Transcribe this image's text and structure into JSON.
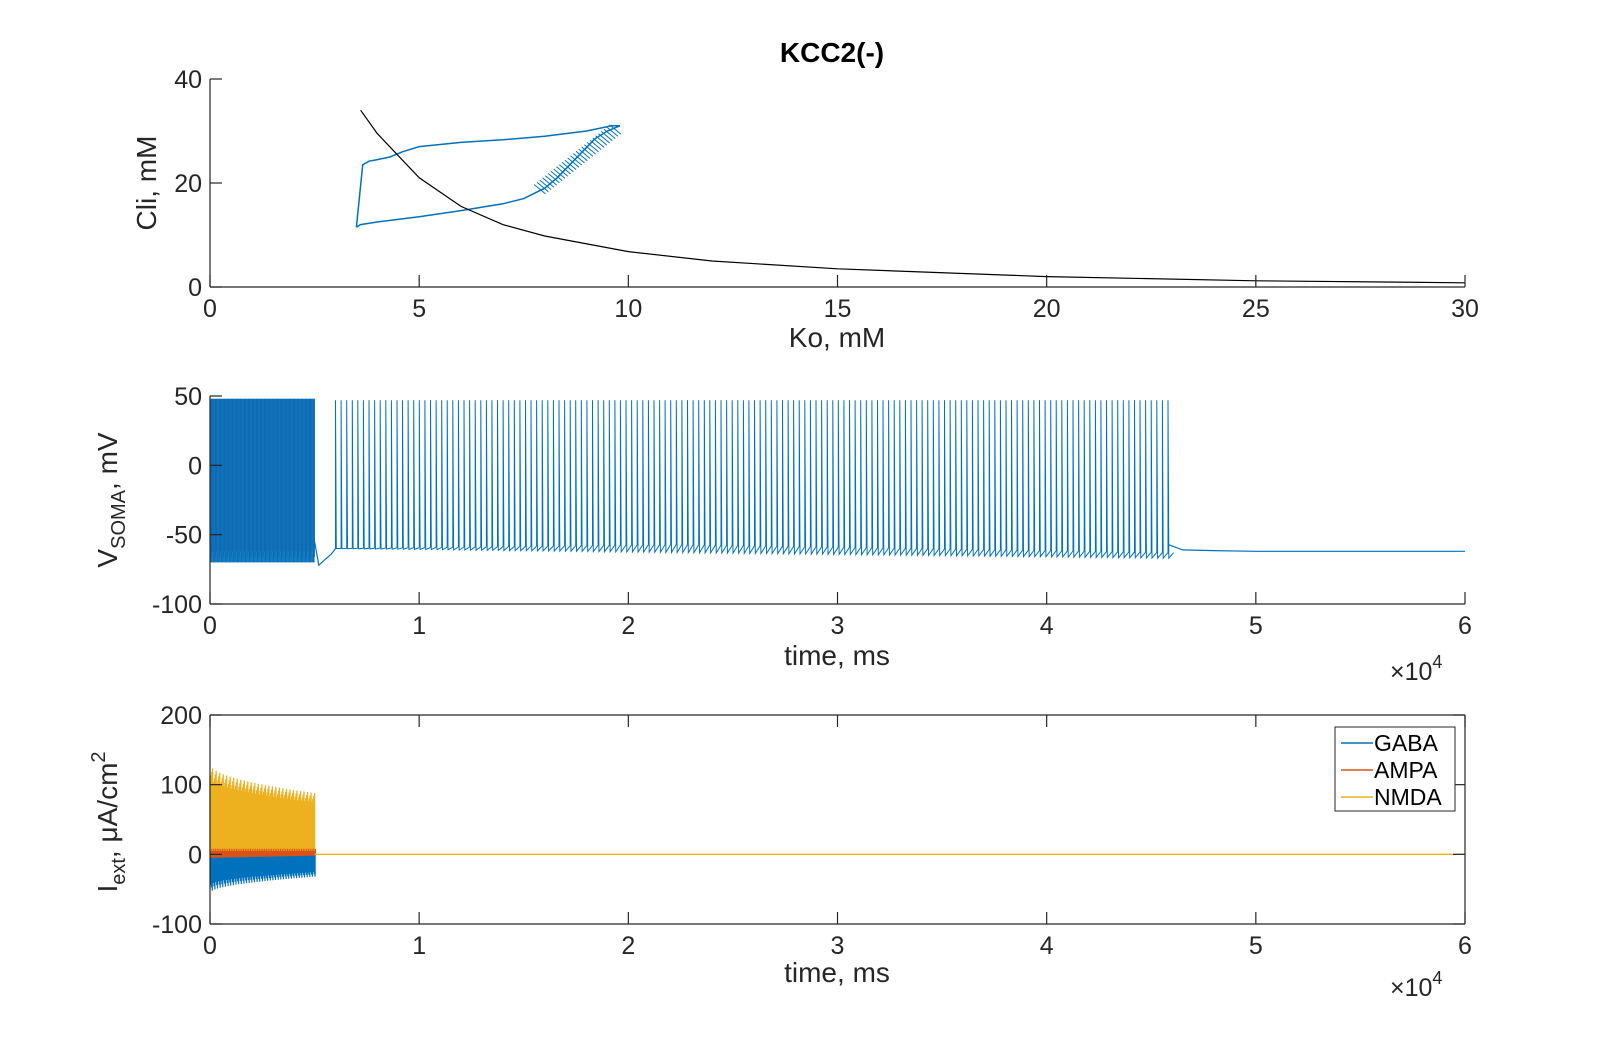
{
  "figure": {
    "title": "KCC2(-)",
    "exponent_base": "×10",
    "exponent_power": "4"
  },
  "colors": {
    "blue": "#0072BD",
    "red": "#D95319",
    "yellow": "#EDB120",
    "black": "#000000",
    "axis": "#262626"
  },
  "chart_data": [
    {
      "type": "line",
      "title": "KCC2(-)",
      "xlabel": "Ko, mM",
      "ylabel": "Cli, mM",
      "xlim": [
        0,
        30
      ],
      "ylim": [
        0,
        40
      ],
      "xticks": [
        0,
        5,
        10,
        15,
        20,
        25,
        30
      ],
      "yticks": [
        0,
        20,
        40
      ],
      "series": [
        {
          "color": "blue",
          "description": "hysteresis loop",
          "x": [
            3.5,
            3.6,
            4.0,
            5.0,
            6.0,
            7.0,
            7.5,
            8.0,
            8.3,
            8.6,
            8.9,
            9.2,
            9.5,
            9.8,
            9.6,
            9.0,
            8.0,
            7.0,
            6.0,
            5.0,
            4.6,
            4.3,
            4.0,
            3.8,
            3.65,
            3.5
          ],
          "y": [
            11.5,
            12.0,
            12.5,
            13.5,
            14.7,
            16.0,
            17.0,
            19.0,
            21.0,
            23.5,
            26.0,
            28.5,
            30.0,
            31.0,
            31.0,
            30.0,
            29.0,
            28.3,
            27.8,
            27.0,
            26.0,
            25.0,
            24.5,
            24.2,
            23.5,
            11.5
          ]
        },
        {
          "color": "black",
          "description": "reference curve",
          "x": [
            3.6,
            4.0,
            5.0,
            6.0,
            7.0,
            8.0,
            10.0,
            12.0,
            15.0,
            20.0,
            25.0,
            30.0
          ],
          "y": [
            34.0,
            29.5,
            21.0,
            15.5,
            12.0,
            9.8,
            6.8,
            5.0,
            3.5,
            2.0,
            1.2,
            0.8
          ]
        }
      ]
    },
    {
      "type": "line",
      "xlabel": "time, ms",
      "ylabel_main": "V",
      "ylabel_sub": "SOMA",
      "ylabel_rest": ", mV",
      "xlim": [
        0,
        6
      ],
      "ylim": [
        -100,
        50
      ],
      "xticks": [
        0,
        1,
        2,
        3,
        4,
        5,
        6
      ],
      "yticks": [
        -100,
        -50,
        0,
        50
      ],
      "x_multiplier": "×10^4",
      "series": [
        {
          "color": "blue",
          "description": "somatic membrane potential",
          "segments": [
            {
              "kind": "burst_dense",
              "t_start": 0.0,
              "t_end": 0.5,
              "v_low": -70,
              "v_high": 48,
              "v_mid_low": -55,
              "v_mid_high": 36
            },
            {
              "kind": "recovery",
              "t": [
                0.5,
                0.52,
                0.55,
                0.58,
                0.6
              ],
              "v": [
                -55,
                -72,
                -68,
                -64,
                -60
              ]
            },
            {
              "kind": "spike_train",
              "t_start": 0.6,
              "t_end": 4.58,
              "spike_count": 150,
              "v_base_start": -60,
              "v_base_mid": -57,
              "v_base_end": -63,
              "v_peak": 47,
              "v_trough_start": -60,
              "v_trough_end": -67
            },
            {
              "kind": "rest",
              "t": [
                4.58,
                4.65,
                4.8,
                5.0,
                5.5,
                6.0
              ],
              "v": [
                -57,
                -61,
                -61.5,
                -62,
                -62,
                -62
              ]
            }
          ]
        }
      ]
    },
    {
      "type": "line",
      "xlabel": "time, ms",
      "ylabel_main": "I",
      "ylabel_sub": "ext",
      "ylabel_rest": ", μA/cm",
      "ylabel_sup": "2",
      "xlim": [
        0,
        6
      ],
      "ylim": [
        -100,
        200
      ],
      "xticks": [
        0,
        1,
        2,
        3,
        4,
        5,
        6
      ],
      "yticks": [
        -100,
        0,
        100,
        200
      ],
      "x_multiplier": "×10^4",
      "legend_position": "top-right",
      "series": [
        {
          "name": "GABA",
          "color": "blue",
          "t_start": 0.0,
          "t_end": 0.5,
          "min_start": -55,
          "min_end": -32,
          "max": 0,
          "after": 0
        },
        {
          "name": "AMPA",
          "color": "red",
          "t_start": 0.0,
          "t_end": 0.5,
          "min_start": -5,
          "min_end": -2,
          "max": 8,
          "after": 0
        },
        {
          "name": "NMDA",
          "color": "yellow",
          "t_start": 0.0,
          "t_end": 0.5,
          "max_start": 130,
          "max_end": 88,
          "min": 0,
          "after": 0
        }
      ]
    }
  ]
}
